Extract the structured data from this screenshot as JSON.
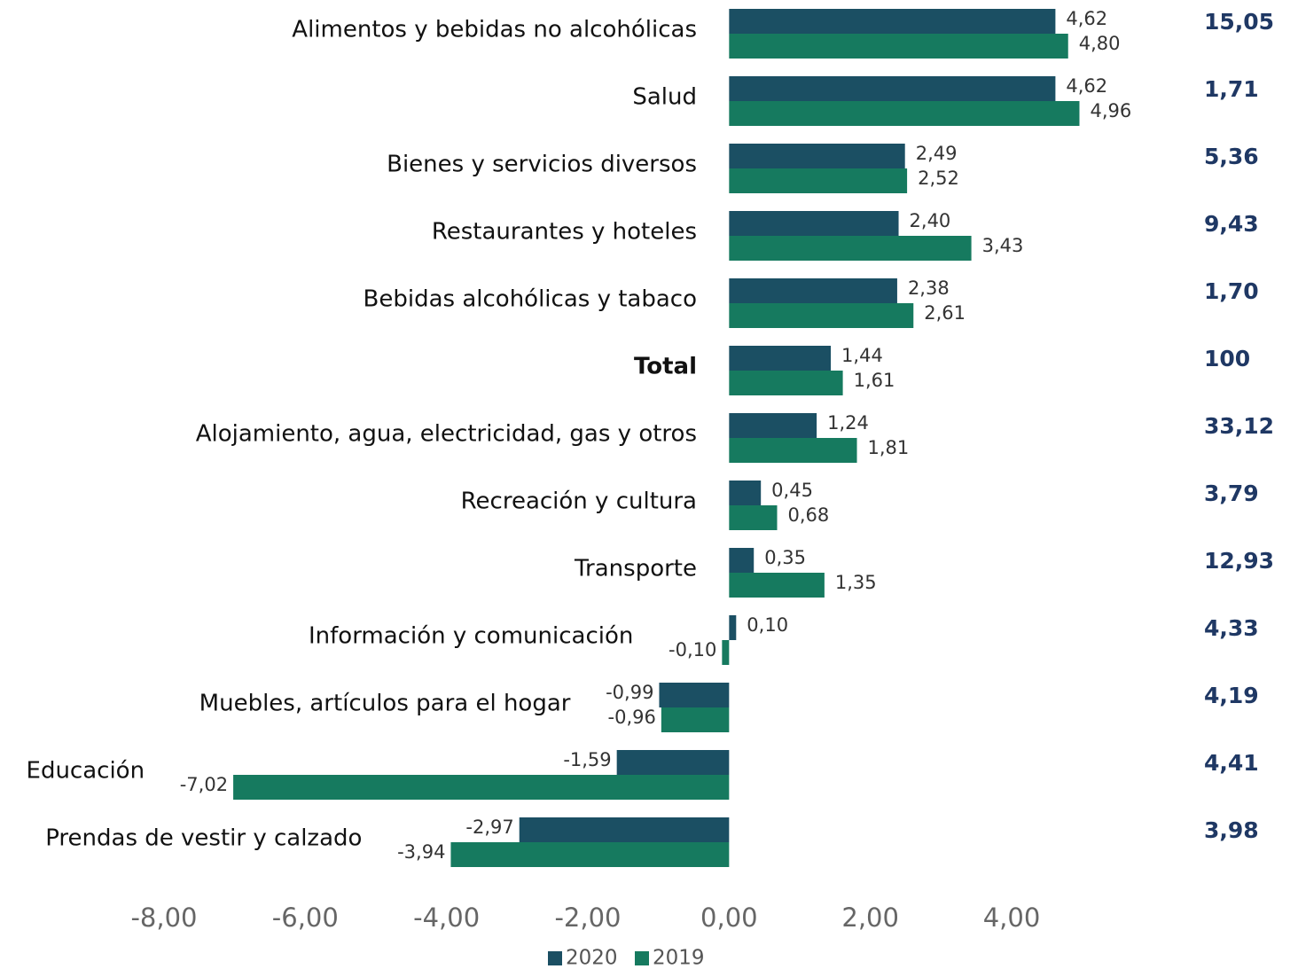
{
  "chart_data": {
    "type": "barh",
    "categories": [
      "Alimentos y bebidas no alcohólicas",
      "Salud",
      "Bienes y servicios diversos",
      "Restaurantes y hoteles",
      "Bebidas alcohólicas y tabaco",
      "Total",
      "Alojamiento, agua, electricidad, gas y otros",
      "Recreación y cultura",
      "Transporte",
      "Información y comunicación",
      "Muebles, artículos para el hogar",
      "Educación",
      "Prendas de vestir y calzado"
    ],
    "series": [
      {
        "name": "2020",
        "color": "#1b4f63",
        "values": [
          4.62,
          4.62,
          2.49,
          2.4,
          2.38,
          1.44,
          1.24,
          0.45,
          0.35,
          0.1,
          -0.99,
          -1.59,
          -2.97
        ],
        "value_labels": [
          "4,62",
          "4,62",
          "2,49",
          "2,40",
          "2,38",
          "1,44",
          "1,24",
          "0,45",
          "0,35",
          "0,10",
          "-0,99",
          "-1,59",
          "-2,97"
        ]
      },
      {
        "name": "2019",
        "color": "#167a5f",
        "values": [
          4.8,
          4.96,
          2.52,
          3.43,
          2.61,
          1.61,
          1.81,
          0.68,
          1.35,
          -0.1,
          -0.96,
          -7.02,
          -3.94
        ],
        "value_labels": [
          "4,80",
          "4,96",
          "2,52",
          "3,43",
          "2,61",
          "1,61",
          "1,81",
          "0,68",
          "1,35",
          "-0,10",
          "-0,96",
          "-7,02",
          "-3,94"
        ]
      }
    ],
    "weights": [
      "15,05",
      "1,71",
      "5,36",
      "9,43",
      "1,70",
      "100",
      "33,12",
      "3,79",
      "12,93",
      "4,33",
      "4,19",
      "4,41",
      "3,98"
    ],
    "xlim": [
      -8,
      6
    ],
    "xticks": [
      {
        "value": -8,
        "label": "-8,00"
      },
      {
        "value": -6,
        "label": "-6,00"
      },
      {
        "value": -4,
        "label": "-4,00"
      },
      {
        "value": -2,
        "label": "-2,00"
      },
      {
        "value": 0,
        "label": "0,00"
      },
      {
        "value": 2,
        "label": "2,00"
      },
      {
        "value": 4,
        "label": "4,00"
      }
    ],
    "bold_category": "Total"
  }
}
